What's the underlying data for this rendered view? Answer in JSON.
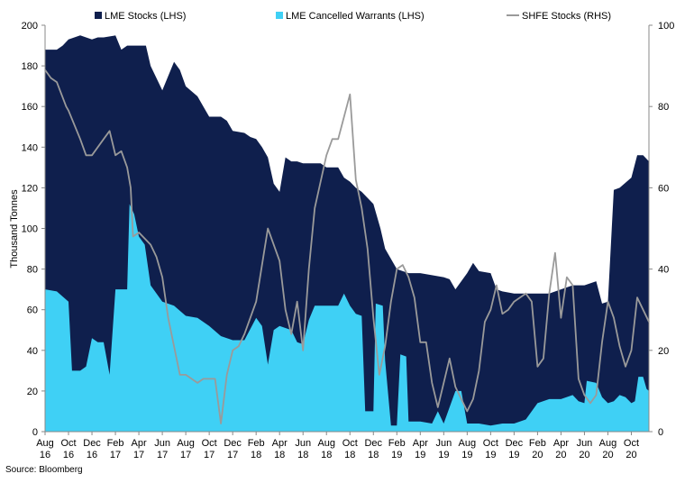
{
  "chart_data": {
    "type": "area",
    "legend_position": "top",
    "grid": false,
    "colors": {
      "lme_stocks": "#0f1f4d",
      "lme_cancelled": "#3fd0f5",
      "shfe": "#9a9a9a",
      "axis": "#888888"
    },
    "ylabel": "Thousand Tonnes",
    "ylim": [
      0,
      200
    ],
    "y2lim": [
      0,
      100
    ],
    "yticks": [
      "0",
      "20",
      "40",
      "60",
      "80",
      "100",
      "120",
      "140",
      "160",
      "180",
      "200"
    ],
    "y2ticks": [
      "0",
      "20",
      "40",
      "60",
      "80",
      "100"
    ],
    "xlim": [
      0,
      51.5
    ],
    "x_ticks": [
      {
        "month": "Aug",
        "year": "16"
      },
      {
        "month": "Oct",
        "year": "16"
      },
      {
        "month": "Dec",
        "year": "16"
      },
      {
        "month": "Feb",
        "year": "17"
      },
      {
        "month": "Apr",
        "year": "17"
      },
      {
        "month": "Jun",
        "year": "17"
      },
      {
        "month": "Aug",
        "year": "17"
      },
      {
        "month": "Oct",
        "year": "17"
      },
      {
        "month": "Dec",
        "year": "17"
      },
      {
        "month": "Feb",
        "year": "18"
      },
      {
        "month": "Apr",
        "year": "18"
      },
      {
        "month": "Jun",
        "year": "18"
      },
      {
        "month": "Aug",
        "year": "18"
      },
      {
        "month": "Oct",
        "year": "18"
      },
      {
        "month": "Dec",
        "year": "18"
      },
      {
        "month": "Feb",
        "year": "19"
      },
      {
        "month": "Apr",
        "year": "19"
      },
      {
        "month": "Jun",
        "year": "19"
      },
      {
        "month": "Aug",
        "year": "19"
      },
      {
        "month": "Oct",
        "year": "19"
      },
      {
        "month": "Dec",
        "year": "19"
      },
      {
        "month": "Feb",
        "year": "20"
      },
      {
        "month": "Apr",
        "year": "20"
      },
      {
        "month": "Jun",
        "year": "20"
      },
      {
        "month": "Aug",
        "year": "20"
      },
      {
        "month": "Oct",
        "year": "20"
      }
    ],
    "series": [
      {
        "name": "LME Stocks (LHS)",
        "axis": "left",
        "points": [
          [
            0,
            188
          ],
          [
            1,
            188
          ],
          [
            1.5,
            190
          ],
          [
            2,
            193
          ],
          [
            3,
            195
          ],
          [
            4,
            193
          ],
          [
            4.5,
            194
          ],
          [
            5,
            194
          ],
          [
            6,
            195
          ],
          [
            6.5,
            188
          ],
          [
            7,
            190
          ],
          [
            7.5,
            190
          ],
          [
            8,
            190
          ],
          [
            8.6,
            190
          ],
          [
            9,
            180
          ],
          [
            10,
            168
          ],
          [
            11,
            182
          ],
          [
            11.5,
            178
          ],
          [
            12,
            170
          ],
          [
            13,
            165
          ],
          [
            13.5,
            160
          ],
          [
            14,
            155
          ],
          [
            15,
            155
          ],
          [
            15.5,
            153
          ],
          [
            16,
            148
          ],
          [
            17,
            147
          ],
          [
            17.5,
            145
          ],
          [
            18,
            144
          ],
          [
            18.5,
            140
          ],
          [
            19,
            135
          ],
          [
            19.5,
            122
          ],
          [
            20,
            118
          ],
          [
            20.5,
            135
          ],
          [
            21,
            133
          ],
          [
            21.5,
            133
          ],
          [
            22,
            132
          ],
          [
            23,
            132
          ],
          [
            23.5,
            132
          ],
          [
            24,
            130
          ],
          [
            25,
            130
          ],
          [
            25.5,
            125
          ],
          [
            26,
            123
          ],
          [
            26.5,
            120
          ],
          [
            27,
            118
          ],
          [
            28,
            112
          ],
          [
            28.6,
            100
          ],
          [
            29,
            90
          ],
          [
            30,
            80
          ],
          [
            31,
            78
          ],
          [
            32,
            78
          ],
          [
            33,
            77
          ],
          [
            34,
            76
          ],
          [
            34.5,
            75
          ],
          [
            35,
            70
          ],
          [
            36,
            78
          ],
          [
            36.5,
            83
          ],
          [
            37,
            79
          ],
          [
            38,
            78
          ],
          [
            38.5,
            70
          ],
          [
            39,
            69
          ],
          [
            40,
            68
          ],
          [
            41,
            68
          ],
          [
            42,
            68
          ],
          [
            43,
            68
          ],
          [
            44,
            70
          ],
          [
            45,
            72
          ],
          [
            45.5,
            72
          ],
          [
            46,
            72
          ],
          [
            47,
            74
          ],
          [
            47.5,
            63
          ],
          [
            48,
            64
          ],
          [
            48.5,
            119
          ],
          [
            49,
            120
          ],
          [
            50,
            125
          ],
          [
            50.5,
            136
          ],
          [
            51,
            136
          ],
          [
            51.5,
            133
          ]
        ]
      },
      {
        "name": "LME Cancelled Warrants (LHS)",
        "axis": "left",
        "points": [
          [
            0,
            70
          ],
          [
            1,
            69
          ],
          [
            2,
            64
          ],
          [
            2.3,
            30
          ],
          [
            3,
            30
          ],
          [
            3.5,
            32
          ],
          [
            4,
            46
          ],
          [
            4.5,
            44
          ],
          [
            5,
            44
          ],
          [
            5.5,
            28
          ],
          [
            6,
            70
          ],
          [
            6.5,
            70
          ],
          [
            7,
            70
          ],
          [
            7.2,
            112
          ],
          [
            7.6,
            107
          ],
          [
            8,
            96
          ],
          [
            8.5,
            92
          ],
          [
            9,
            72
          ],
          [
            10,
            64
          ],
          [
            11,
            62
          ],
          [
            12,
            57
          ],
          [
            13,
            56
          ],
          [
            14,
            52
          ],
          [
            15,
            47
          ],
          [
            16,
            45
          ],
          [
            17,
            45
          ],
          [
            18,
            56
          ],
          [
            18.5,
            52
          ],
          [
            19,
            33
          ],
          [
            19.5,
            50
          ],
          [
            20,
            52
          ],
          [
            21,
            50
          ],
          [
            21.5,
            44
          ],
          [
            22,
            43
          ],
          [
            22.5,
            55
          ],
          [
            23,
            62
          ],
          [
            24,
            62
          ],
          [
            25,
            62
          ],
          [
            25.5,
            68
          ],
          [
            26,
            62
          ],
          [
            26.5,
            58
          ],
          [
            27,
            57
          ],
          [
            27.3,
            10
          ],
          [
            28,
            10
          ],
          [
            28.2,
            63
          ],
          [
            28.8,
            62
          ],
          [
            29,
            35
          ],
          [
            29.5,
            3
          ],
          [
            30,
            3
          ],
          [
            30.3,
            38
          ],
          [
            30.8,
            37
          ],
          [
            31,
            5
          ],
          [
            32,
            5
          ],
          [
            33,
            4
          ],
          [
            33.5,
            10
          ],
          [
            34,
            4
          ],
          [
            35,
            20
          ],
          [
            35.5,
            20
          ],
          [
            36,
            4
          ],
          [
            37,
            4
          ],
          [
            38,
            3
          ],
          [
            39,
            4
          ],
          [
            40,
            4
          ],
          [
            41,
            6
          ],
          [
            42,
            14
          ],
          [
            43,
            16
          ],
          [
            44,
            16
          ],
          [
            45,
            18
          ],
          [
            45.5,
            15
          ],
          [
            46,
            14
          ],
          [
            46.2,
            25
          ],
          [
            47,
            24
          ],
          [
            47.5,
            17
          ],
          [
            48,
            14
          ],
          [
            48.5,
            15
          ],
          [
            49,
            18
          ],
          [
            49.5,
            17
          ],
          [
            50,
            14
          ],
          [
            50.3,
            15
          ],
          [
            50.6,
            27
          ],
          [
            51,
            27
          ],
          [
            51.3,
            21
          ],
          [
            51.5,
            20
          ]
        ]
      },
      {
        "name": "SHFE Stocks (RHS)",
        "axis": "right",
        "points": [
          [
            0,
            89
          ],
          [
            0.5,
            87
          ],
          [
            1,
            86
          ],
          [
            1.8,
            80
          ],
          [
            2,
            79
          ],
          [
            3,
            72
          ],
          [
            3.5,
            68
          ],
          [
            4,
            68
          ],
          [
            5,
            72
          ],
          [
            5.5,
            74
          ],
          [
            6,
            68
          ],
          [
            6.5,
            69
          ],
          [
            7,
            65
          ],
          [
            7.3,
            60
          ],
          [
            7.5,
            48
          ],
          [
            8,
            49
          ],
          [
            9,
            46
          ],
          [
            9.5,
            43
          ],
          [
            10,
            38
          ],
          [
            10.5,
            28
          ],
          [
            11,
            21
          ],
          [
            11.5,
            14
          ],
          [
            12,
            14
          ],
          [
            13,
            12
          ],
          [
            13.5,
            13
          ],
          [
            14,
            13
          ],
          [
            14.5,
            13
          ],
          [
            15,
            2
          ],
          [
            15.5,
            14
          ],
          [
            16,
            20
          ],
          [
            16.5,
            21
          ],
          [
            17,
            24
          ],
          [
            18,
            32
          ],
          [
            19,
            50
          ],
          [
            20,
            42
          ],
          [
            20.5,
            30
          ],
          [
            21,
            24
          ],
          [
            21.5,
            32
          ],
          [
            22,
            20
          ],
          [
            22.5,
            40
          ],
          [
            23,
            55
          ],
          [
            24,
            68
          ],
          [
            24.5,
            72
          ],
          [
            25,
            72
          ],
          [
            26,
            83
          ],
          [
            26.5,
            62
          ],
          [
            27,
            55
          ],
          [
            27.5,
            45
          ],
          [
            28,
            28
          ],
          [
            28.5,
            14
          ],
          [
            29,
            21
          ],
          [
            29.5,
            32
          ],
          [
            30,
            40
          ],
          [
            30.5,
            41
          ],
          [
            31,
            38
          ],
          [
            31.5,
            33
          ],
          [
            32,
            22
          ],
          [
            32.5,
            22
          ],
          [
            33,
            12
          ],
          [
            33.5,
            6
          ],
          [
            34,
            12
          ],
          [
            34.5,
            18
          ],
          [
            35,
            11
          ],
          [
            36,
            5
          ],
          [
            36.5,
            8
          ],
          [
            37,
            15
          ],
          [
            37.5,
            27
          ],
          [
            38,
            30
          ],
          [
            38.5,
            36
          ],
          [
            39,
            29
          ],
          [
            39.5,
            30
          ],
          [
            40,
            32
          ],
          [
            41,
            34
          ],
          [
            41.5,
            32
          ],
          [
            42,
            16
          ],
          [
            42.5,
            18
          ],
          [
            43,
            34
          ],
          [
            43.5,
            44
          ],
          [
            44,
            28
          ],
          [
            44.5,
            38
          ],
          [
            45,
            36
          ],
          [
            45.5,
            13
          ],
          [
            46,
            9
          ],
          [
            46.5,
            7
          ],
          [
            47,
            9
          ],
          [
            47.5,
            22
          ],
          [
            48,
            32
          ],
          [
            48.5,
            28
          ],
          [
            49,
            21
          ],
          [
            49.5,
            16
          ],
          [
            50,
            20
          ],
          [
            50.5,
            33
          ],
          [
            51,
            30
          ],
          [
            51.5,
            27
          ]
        ]
      }
    ]
  },
  "source": "Source: Bloomberg"
}
